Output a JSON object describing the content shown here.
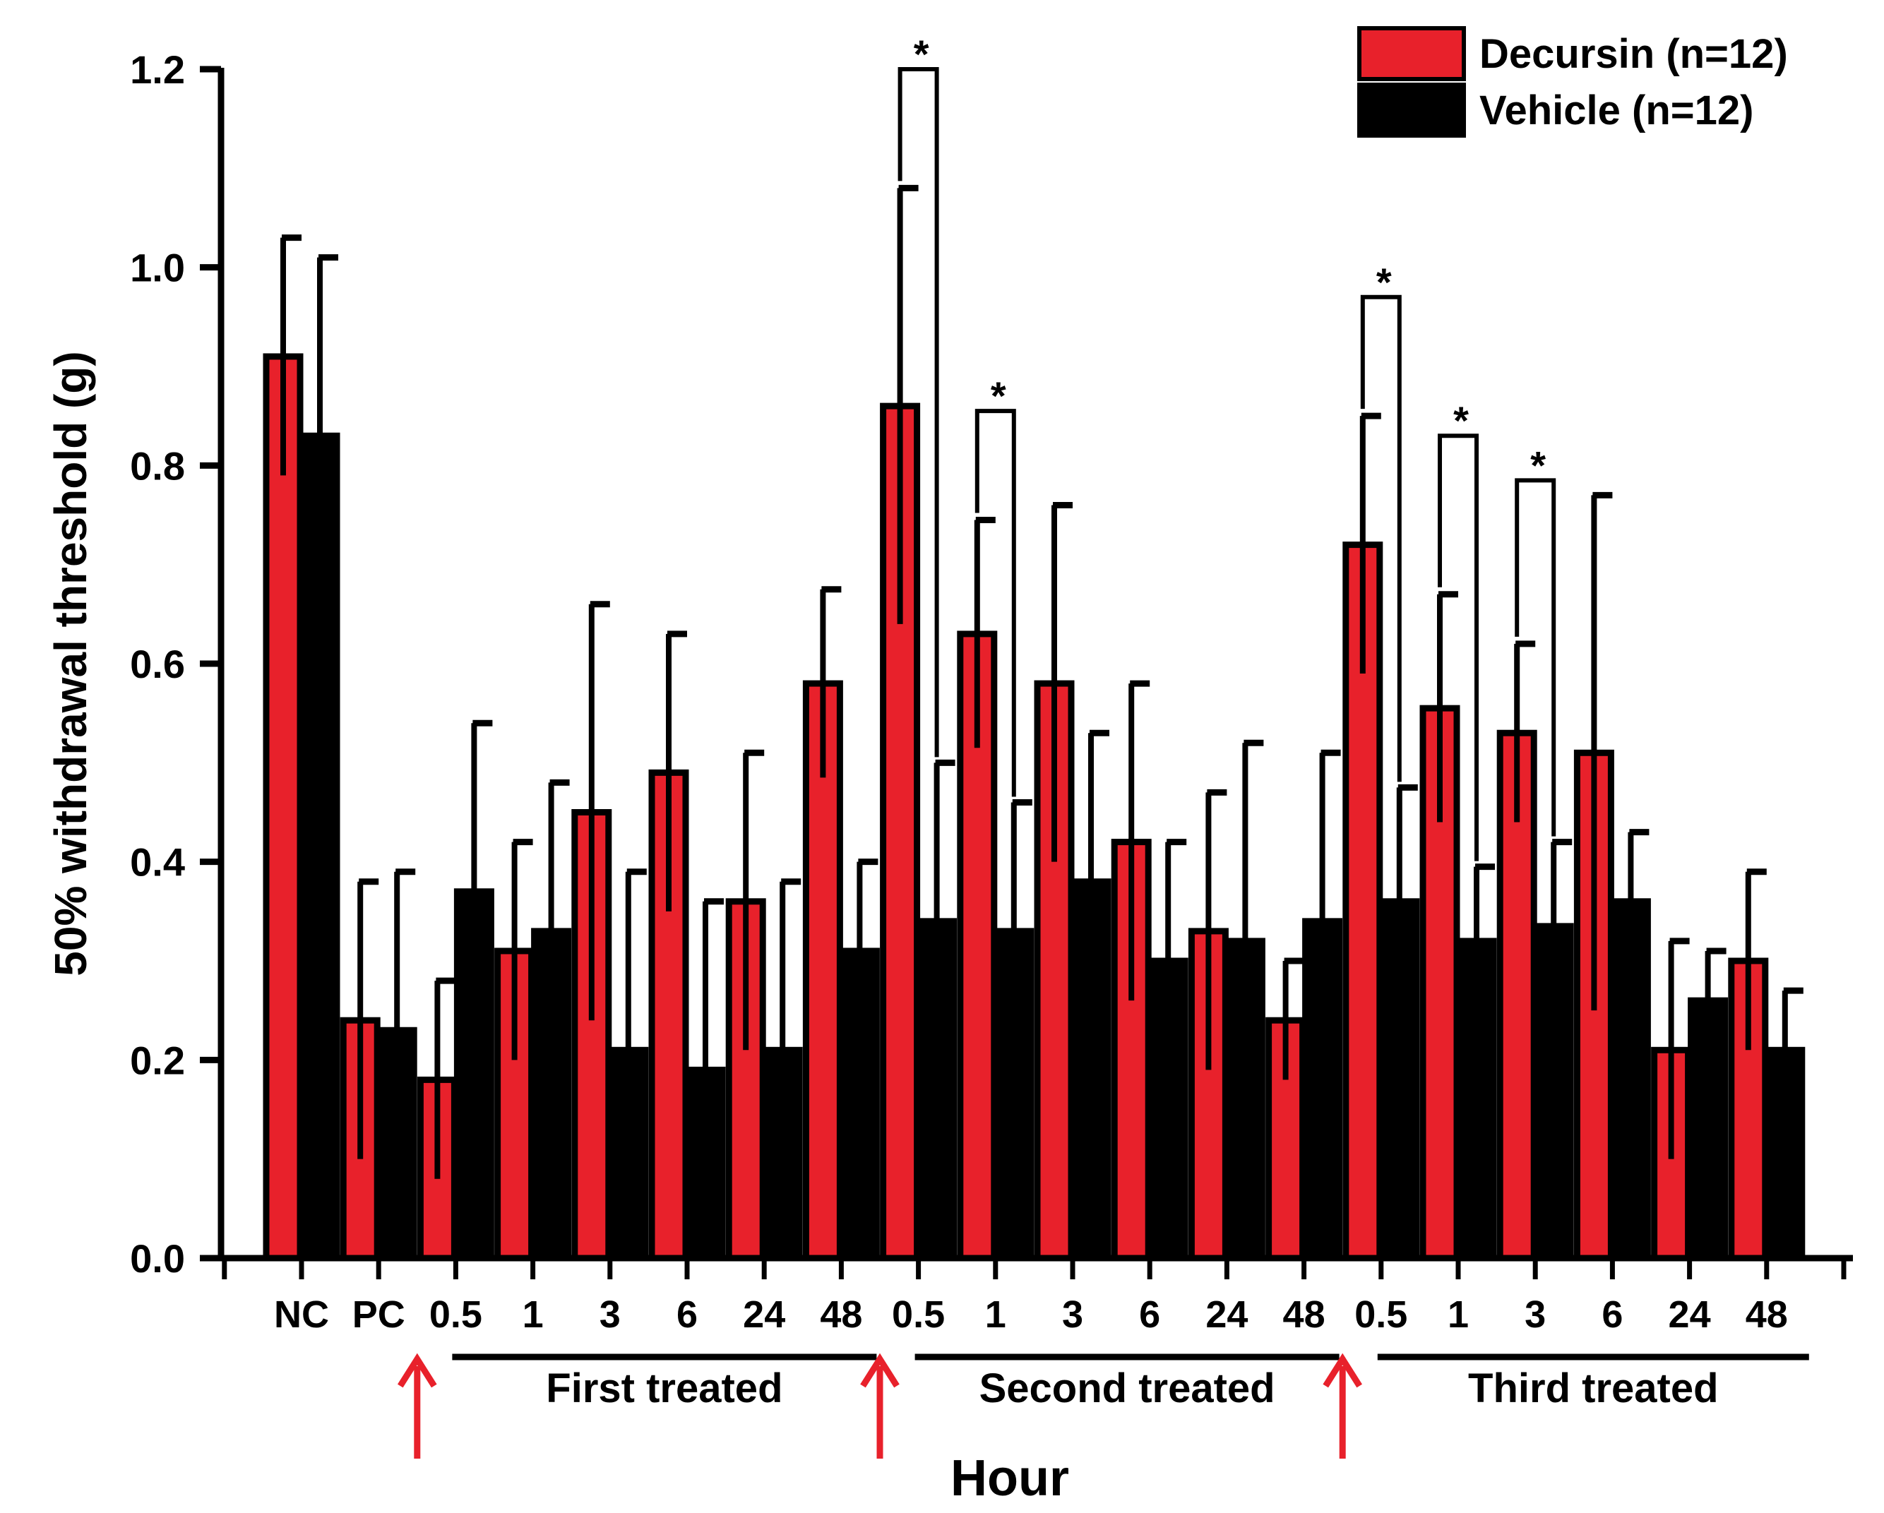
{
  "chart_data": {
    "type": "bar",
    "title": "",
    "ylabel": "50% withdrawal threshold (g)",
    "xlabel": "Hour",
    "ylim": [
      0,
      1.2
    ],
    "yticks": [
      "0.0",
      "0.2",
      "0.4",
      "0.6",
      "0.8",
      "1.0",
      "1.2"
    ],
    "ytick_values": [
      0,
      0.2,
      0.4,
      0.6,
      0.8,
      1.0,
      1.2
    ],
    "categories": [
      "NC",
      "PC",
      "0.5",
      "1",
      "3",
      "6",
      "24",
      "48",
      "0.5",
      "1",
      "3",
      "6",
      "24",
      "48",
      "0.5",
      "1",
      "3",
      "6",
      "24",
      "48"
    ],
    "series": [
      {
        "name": "Decursin (n=12)",
        "color": "#e8212b",
        "values": [
          0.91,
          0.24,
          0.18,
          0.31,
          0.45,
          0.49,
          0.36,
          0.58,
          0.86,
          0.63,
          0.58,
          0.42,
          0.33,
          0.24,
          0.72,
          0.555,
          0.53,
          0.51,
          0.21,
          0.3
        ],
        "errors": [
          0.12,
          0.14,
          0.1,
          0.11,
          0.21,
          0.14,
          0.15,
          0.095,
          0.22,
          0.115,
          0.18,
          0.16,
          0.14,
          0.06,
          0.13,
          0.115,
          0.09,
          0.26,
          0.11,
          0.09
        ]
      },
      {
        "name": "Vehicle (n=12)",
        "color": "#000000",
        "values": [
          0.83,
          0.23,
          0.37,
          0.33,
          0.21,
          0.19,
          0.21,
          0.31,
          0.34,
          0.33,
          0.38,
          0.3,
          0.32,
          0.34,
          0.36,
          0.32,
          0.335,
          0.36,
          0.26,
          0.21
        ],
        "errors": [
          0.18,
          0.16,
          0.17,
          0.15,
          0.18,
          0.17,
          0.17,
          0.09,
          0.16,
          0.13,
          0.15,
          0.12,
          0.2,
          0.17,
          0.115,
          0.075,
          0.085,
          0.07,
          0.05,
          0.06
        ]
      }
    ],
    "significance": [
      {
        "index": 8,
        "label": "*",
        "y": 1.2
      },
      {
        "index": 9,
        "label": "*",
        "y": 0.855
      },
      {
        "index": 14,
        "label": "*",
        "y": 0.97
      },
      {
        "index": 15,
        "label": "*",
        "y": 0.83
      },
      {
        "index": 16,
        "label": "*",
        "y": 0.785
      }
    ],
    "groups": [
      {
        "label": "First treated",
        "from": 2,
        "to": 7
      },
      {
        "label": "Second treated",
        "from": 8,
        "to": 13
      },
      {
        "label": "Third treated",
        "from": 14,
        "to": 19
      }
    ],
    "arrows": [
      {
        "between": [
          1,
          2
        ],
        "color": "#e8212b"
      },
      {
        "between": [
          7,
          8
        ],
        "color": "#e8212b"
      },
      {
        "between": [
          13,
          14
        ],
        "color": "#e8212b"
      }
    ],
    "legend": {
      "position": "top-right",
      "entries": [
        "Decursin (n=12)",
        "Vehicle (n=12)"
      ]
    }
  }
}
